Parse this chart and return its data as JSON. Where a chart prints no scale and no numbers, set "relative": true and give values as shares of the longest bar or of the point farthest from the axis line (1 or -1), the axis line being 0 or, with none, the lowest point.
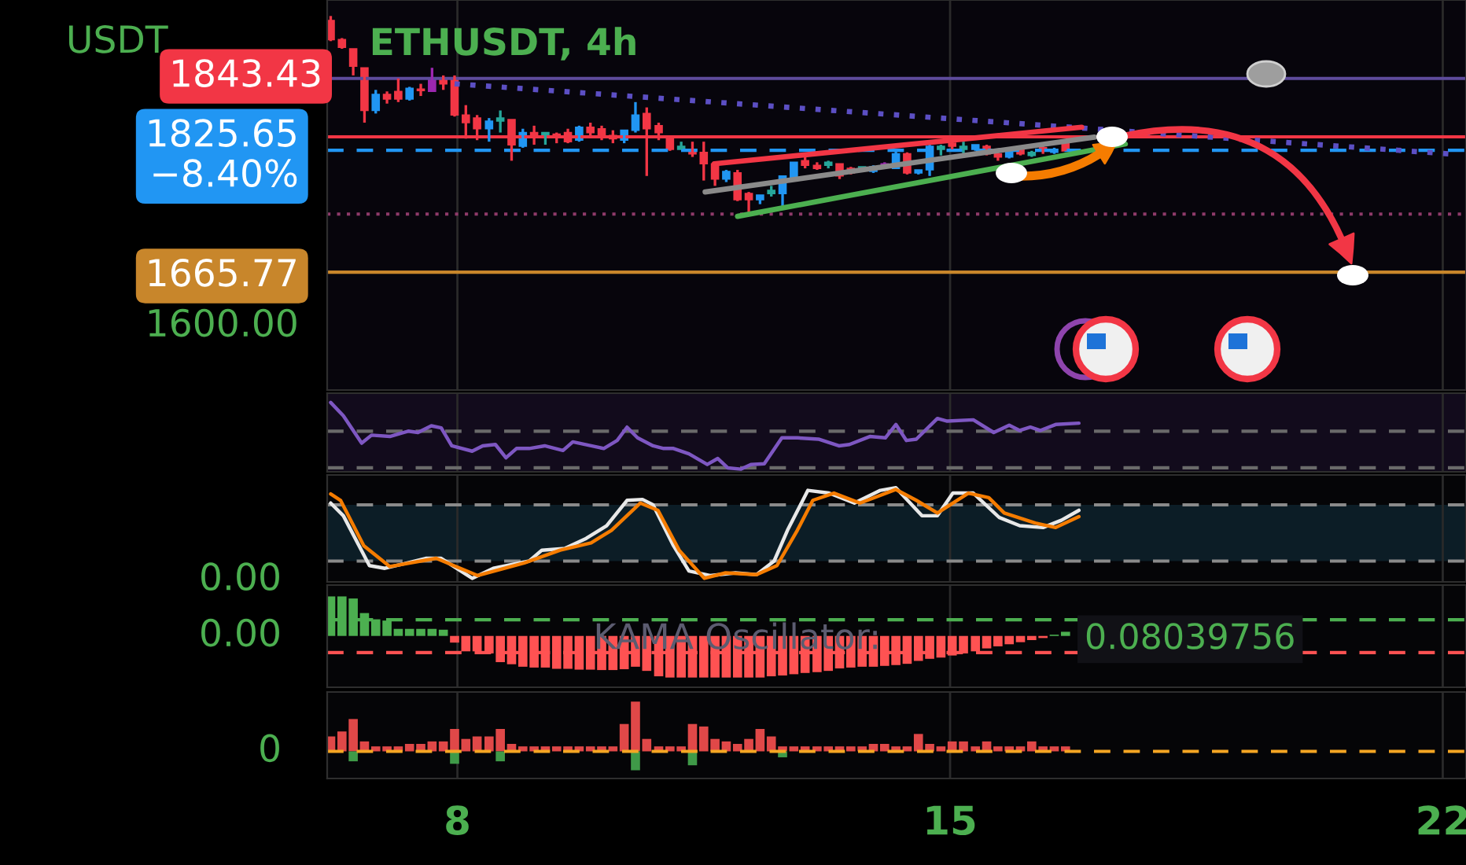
{
  "chart_data": [
    {
      "type": "candlestick",
      "title": "ETHUSDT, 4h",
      "ylabel": "USDT",
      "x": [
        6.2,
        6.36,
        6.52,
        6.68,
        6.84,
        7.0,
        7.16,
        7.32,
        7.48,
        7.64,
        7.8,
        7.96,
        8.12,
        8.28,
        8.45,
        8.61,
        8.77,
        8.93,
        9.09,
        9.25,
        9.41,
        9.57,
        9.73,
        9.89,
        10.05,
        10.21,
        10.37,
        10.53,
        10.69,
        10.86,
        11.02,
        11.18,
        11.34,
        11.5,
        11.66,
        11.82,
        11.98,
        12.14,
        12.3,
        12.46,
        12.62,
        12.78,
        12.94,
        13.11,
        13.27,
        13.43,
        13.59,
        13.75,
        13.91,
        14.07,
        14.23,
        14.39,
        14.55,
        14.71,
        14.87,
        15.03,
        15.19,
        15.36,
        15.52,
        15.68,
        15.84,
        16.0,
        16.16,
        16.32,
        16.48,
        16.64
      ],
      "ohlc": [
        [
          1996,
          2002,
          1969,
          1971
        ],
        [
          1971,
          1973,
          1959,
          1961
        ],
        [
          1959,
          1959,
          1924,
          1936
        ],
        [
          1934,
          1934,
          1862,
          1878
        ],
        [
          1878,
          1905,
          1874,
          1899
        ],
        [
          1899,
          1903,
          1887,
          1893
        ],
        [
          1903,
          1920,
          1889,
          1893
        ],
        [
          1893,
          1909,
          1891,
          1907
        ],
        [
          1906,
          1913,
          1897,
          1904
        ],
        [
          1903,
          1934,
          1903,
          1918
        ],
        [
          1920,
          1924,
          1905,
          1913
        ],
        [
          1918,
          1924,
          1870,
          1872
        ],
        [
          1872,
          1885,
          1841,
          1862
        ],
        [
          1868,
          1872,
          1839,
          1854
        ],
        [
          1854,
          1868,
          1837,
          1864
        ],
        [
          1864,
          1878,
          1849,
          1868
        ],
        [
          1866,
          1866,
          1812,
          1833
        ],
        [
          1831,
          1854,
          1829,
          1849
        ],
        [
          1849,
          1858,
          1833,
          1843
        ],
        [
          1845,
          1849,
          1833,
          1849
        ],
        [
          1847,
          1849,
          1835,
          1843
        ],
        [
          1849,
          1854,
          1835,
          1837
        ],
        [
          1839,
          1858,
          1837,
          1856
        ],
        [
          1856,
          1862,
          1845,
          1849
        ],
        [
          1854,
          1858,
          1839,
          1845
        ],
        [
          1845,
          1852,
          1835,
          1841
        ],
        [
          1839,
          1852,
          1835,
          1852
        ],
        [
          1852,
          1889,
          1849,
          1872
        ],
        [
          1874,
          1882,
          1792,
          1854
        ],
        [
          1858,
          1862,
          1839,
          1849
        ],
        [
          1841,
          1845,
          1825,
          1827
        ],
        [
          1827,
          1837,
          1827,
          1831
        ],
        [
          1827,
          1837,
          1817,
          1821
        ],
        [
          1823,
          1837,
          1786,
          1808
        ],
        [
          1808,
          1810,
          1779,
          1788
        ],
        [
          1788,
          1800,
          1784,
          1798
        ],
        [
          1796,
          1800,
          1759,
          1761
        ],
        [
          1769,
          1771,
          1740,
          1761
        ],
        [
          1761,
          1767,
          1755,
          1767
        ],
        [
          1769,
          1779,
          1765,
          1773
        ],
        [
          1769,
          1792,
          1748,
          1792
        ],
        [
          1790,
          1810,
          1786,
          1810
        ],
        [
          1812,
          1817,
          1802,
          1806
        ],
        [
          1806,
          1810,
          1800,
          1802
        ],
        [
          1806,
          1812,
          1802,
          1810
        ],
        [
          1808,
          1808,
          1788,
          1792
        ],
        [
          1802,
          1804,
          1794,
          1796
        ],
        [
          1800,
          1804,
          1798,
          1804
        ],
        [
          1798,
          1806,
          1796,
          1804
        ],
        [
          1806,
          1810,
          1806,
          1808
        ],
        [
          1802,
          1825,
          1802,
          1821
        ],
        [
          1821,
          1823,
          1794,
          1796
        ],
        [
          1796,
          1800,
          1794,
          1800
        ],
        [
          1800,
          1833,
          1792,
          1831
        ],
        [
          1827,
          1833,
          1819,
          1831
        ],
        [
          1835,
          1839,
          1827,
          1831
        ],
        [
          1827,
          1837,
          1817,
          1831
        ],
        [
          1827,
          1833,
          1825,
          1833
        ],
        [
          1831,
          1833,
          1819,
          1821
        ],
        [
          1821,
          1827,
          1812,
          1817
        ],
        [
          1817,
          1825,
          1815,
          1825
        ],
        [
          1827,
          1829,
          1819,
          1821
        ],
        [
          1819,
          1825,
          1817,
          1823
        ],
        [
          1829,
          1831,
          1821,
          1825
        ],
        [
          1823,
          1829,
          1821,
          1827
        ],
        [
          1835,
          1837,
          1825,
          1825
        ]
      ],
      "colors": [
        "#f23645",
        "#f23645",
        "#f23645",
        "#f23645",
        "#2196f3",
        "#f23645",
        "#f23645",
        "#2196f3",
        "#f23645",
        "#9c27b0",
        "#f23645",
        "#f23645",
        "#f23645",
        "#f23645",
        "#2196f3",
        "#26a69a",
        "#f23645",
        "#2196f3",
        "#f23645",
        "#26a69a",
        "#f23645",
        "#f23645",
        "#2196f3",
        "#f23645",
        "#f23645",
        "#f23645",
        "#2196f3",
        "#2196f3",
        "#f23645",
        "#f23645",
        "#f23645",
        "#26a69a",
        "#f23645",
        "#f23645",
        "#f23645",
        "#2196f3",
        "#f23645",
        "#f23645",
        "#2196f3",
        "#26a69a",
        "#2196f3",
        "#2196f3",
        "#f23645",
        "#f23645",
        "#26a69a",
        "#f23645",
        "#f23645",
        "#26a69a",
        "#2196f3",
        "#9c27b0",
        "#2196f3",
        "#f23645",
        "#2196f3",
        "#2196f3",
        "#26a69a",
        "#f23645",
        "#26a69a",
        "#2196f3",
        "#f23645",
        "#f23645",
        "#2196f3",
        "#f23645",
        "#26a69a",
        "#f23645",
        "#2196f3",
        "#f23645"
      ],
      "series": [
        {
          "type": "line",
          "color": "#5c4fc4",
          "line_style": "dotted",
          "x": [
            7.96,
            22.09
          ],
          "values": [
            1913,
            1821
          ]
        },
        {
          "type": "line",
          "color": "#f23645",
          "line_style": "solid",
          "x": [
            11.65,
            16.87
          ],
          "values": [
            1808,
            1856
          ]
        },
        {
          "type": "line",
          "color": "#8a8a8a",
          "line_style": "solid",
          "x": [
            11.52,
            17.05
          ],
          "values": [
            1771,
            1843
          ]
        },
        {
          "type": "line",
          "color": "#4caf50",
          "line_style": "solid",
          "x": [
            11.98,
            17.49
          ],
          "values": [
            1739,
            1834
          ]
        }
      ],
      "xlim": [
        6.15,
        22.33
      ],
      "ylim": [
        1511,
        2023
      ],
      "xticks": [
        8,
        15,
        22
      ],
      "yticks": [
        {
          "value": 1600,
          "label": "1600.00"
        },
        {
          "value": 1665.77,
          "label": "1665.77"
        },
        {
          "value": 1825.65,
          "label": "1825.65\n−8.40%"
        }
      ],
      "ref_lines": [
        {
          "axis": "y",
          "value": 1920,
          "color": "#5e4b9c",
          "line_style": "solid"
        },
        {
          "axis": "y",
          "value": 1843.43,
          "label": "1843.43",
          "color": "#f23645",
          "line_style": "solid"
        },
        {
          "axis": "y",
          "value": 1825.65,
          "color": "#2196f3",
          "line_style": "dashed"
        },
        {
          "axis": "y",
          "value": 1742,
          "color": "#8e3a6a",
          "line_style": "dotted"
        },
        {
          "axis": "y",
          "value": 1665.77,
          "color": "#c8862b",
          "line_style": "solid"
        }
      ],
      "grid": "x",
      "tick_labels": "y"
    },
    {
      "type": "line",
      "relative": true,
      "series": [
        {
          "color": "#7e57c2",
          "x": [
            6.2,
            6.38,
            6.64,
            6.78,
            7.04,
            7.3,
            7.44,
            7.63,
            7.77,
            7.92,
            8.21,
            8.36,
            8.54,
            8.69,
            8.84,
            9.02,
            9.24,
            9.5,
            9.64,
            9.9,
            10.08,
            10.27,
            10.41,
            10.56,
            10.78,
            10.93,
            11.07,
            11.29,
            11.55,
            11.7,
            11.84,
            12.03,
            12.17,
            12.36,
            12.61,
            12.83,
            13.13,
            13.42,
            13.57,
            13.86,
            14.08,
            14.23,
            14.38,
            14.52,
            14.82,
            14.96,
            15.33,
            15.62,
            15.84,
            15.99,
            16.14,
            16.28,
            16.5,
            16.83
          ],
          "values": [
            1.0,
            0.8,
            0.39,
            0.51,
            0.49,
            0.57,
            0.55,
            0.65,
            0.62,
            0.35,
            0.27,
            0.35,
            0.37,
            0.17,
            0.31,
            0.31,
            0.35,
            0.28,
            0.41,
            0.35,
            0.31,
            0.43,
            0.63,
            0.47,
            0.35,
            0.31,
            0.31,
            0.23,
            0.07,
            0.16,
            0.02,
            0,
            0.07,
            0.08,
            0.47,
            0.47,
            0.45,
            0.35,
            0.37,
            0.49,
            0.47,
            0.67,
            0.43,
            0.45,
            0.76,
            0.72,
            0.74,
            0.55,
            0.66,
            0.58,
            0.63,
            0.58,
            0.67,
            0.69
          ]
        }
      ],
      "xlim": [
        6.15,
        22.33
      ],
      "xticks": [
        8,
        15,
        22
      ],
      "grid": "x",
      "tick_labels": false,
      "ref_lines": [
        {
          "axis": "y",
          "value": 0.57,
          "color": "#6a6a6a",
          "line_style": "dashed"
        },
        {
          "axis": "y",
          "value": 0.02,
          "color": "#6a6a6a",
          "line_style": "dashed"
        }
      ]
    },
    {
      "type": "line",
      "relative": true,
      "series": [
        {
          "color": "#e8e8e8",
          "x": [
            6.2,
            6.38,
            6.75,
            6.97,
            7.55,
            7.77,
            8.21,
            8.51,
            9.02,
            9.2,
            9.53,
            9.83,
            10.12,
            10.41,
            10.63,
            10.78,
            11.07,
            11.29,
            11.59,
            11.95,
            12.25,
            12.5,
            12.69,
            12.98,
            13.28,
            13.64,
            14.01,
            14.23,
            14.6,
            14.82,
            15.04,
            15.33,
            15.7,
            15.99,
            16.32,
            16.58,
            16.83
          ],
          "values": [
            0.83,
            0.69,
            0.14,
            0.11,
            0.22,
            0.22,
            0,
            0.11,
            0.19,
            0.31,
            0.33,
            0.44,
            0.58,
            0.86,
            0.87,
            0.81,
            0.36,
            0.08,
            0.03,
            0.06,
            0.04,
            0.19,
            0.53,
            0.97,
            0.94,
            0.83,
            0.97,
            1.0,
            0.69,
            0.69,
            0.94,
            0.94,
            0.67,
            0.58,
            0.56,
            0.64,
            0.75
          ]
        },
        {
          "color": "#f57c00",
          "x": [
            6.2,
            6.34,
            6.67,
            7.04,
            7.7,
            8.29,
            8.95,
            9.46,
            9.9,
            10.19,
            10.6,
            10.85,
            11.15,
            11.51,
            11.81,
            12.25,
            12.54,
            12.83,
            13.05,
            13.35,
            13.72,
            14.23,
            14.52,
            14.82,
            15.26,
            15.55,
            15.77,
            16.21,
            16.5,
            16.83
          ],
          "values": [
            0.93,
            0.86,
            0.36,
            0.13,
            0.22,
            0.03,
            0.17,
            0.31,
            0.39,
            0.53,
            0.83,
            0.75,
            0.31,
            0,
            0.06,
            0.04,
            0.14,
            0.53,
            0.86,
            0.94,
            0.83,
            0.98,
            0.86,
            0.72,
            0.94,
            0.89,
            0.72,
            0.61,
            0.56,
            0.68
          ]
        }
      ],
      "xlim": [
        6.15,
        22.33
      ],
      "xticks": [
        8,
        15,
        22
      ],
      "grid": "x",
      "tick_labels": false,
      "bands": [
        {
          "axis": "y",
          "from": 0.19,
          "to": 0.81,
          "color": "#0c1d26"
        }
      ],
      "ref_lines": [
        {
          "axis": "y",
          "value": 0.81,
          "color": "#8a8a8a",
          "line_style": "dashed"
        },
        {
          "axis": "y",
          "value": 0.19,
          "color": "#8a8a8a",
          "line_style": "dashed"
        }
      ],
      "annotations": [
        "0.00"
      ]
    },
    {
      "type": "bar",
      "relative": true,
      "x": [
        6.2,
        6.36,
        6.52,
        6.68,
        6.84,
        7.0,
        7.16,
        7.32,
        7.48,
        7.64,
        7.8,
        7.96,
        8.12,
        8.28,
        8.45,
        8.61,
        8.77,
        8.93,
        9.09,
        9.25,
        9.41,
        9.57,
        9.73,
        9.89,
        10.05,
        10.21,
        10.37,
        10.53,
        10.69,
        10.86,
        11.02,
        11.18,
        11.34,
        11.5,
        11.66,
        11.82,
        11.98,
        12.14,
        12.3,
        12.46,
        12.62,
        12.78,
        12.94,
        13.11,
        13.27,
        13.43,
        13.59,
        13.75,
        13.91,
        14.07,
        14.23,
        14.39,
        14.55,
        14.71,
        14.87,
        15.03,
        15.19,
        15.36,
        15.52,
        15.68,
        15.84,
        16.0,
        16.16,
        16.32,
        16.48,
        16.64
      ],
      "values": [
        0.95,
        0.95,
        0.9,
        0.55,
        0.4,
        0.37,
        0.17,
        0.17,
        0.17,
        0.17,
        0.15,
        -0.16,
        -0.37,
        -0.37,
        -0.42,
        -0.63,
        -0.68,
        -0.74,
        -0.76,
        -0.76,
        -0.79,
        -0.79,
        -0.81,
        -0.81,
        -0.82,
        -0.82,
        -0.8,
        -0.74,
        -0.84,
        -0.97,
        -1,
        -1,
        -1,
        -1,
        -1,
        -1,
        -1,
        -1,
        -1,
        -0.97,
        -0.95,
        -0.92,
        -0.89,
        -0.87,
        -0.84,
        -0.78,
        -0.76,
        -0.74,
        -0.74,
        -0.72,
        -0.7,
        -0.67,
        -0.6,
        -0.55,
        -0.52,
        -0.47,
        -0.42,
        -0.37,
        -0.3,
        -0.25,
        -0.2,
        -0.15,
        -0.1,
        -0.05,
        0.03,
        0.1
      ],
      "colors": [
        "#4caf50",
        "#4caf50",
        "#4caf50",
        "#4caf50",
        "#4caf50",
        "#4caf50",
        "#4caf50",
        "#4caf50",
        "#4caf50",
        "#4caf50",
        "#4caf50",
        "#ff5252",
        "#ff5252",
        "#ff5252",
        "#ff5252",
        "#ff5252",
        "#ff5252",
        "#ff5252",
        "#ff5252",
        "#ff5252",
        "#ff5252",
        "#ff5252",
        "#ff5252",
        "#ff5252",
        "#ff5252",
        "#ff5252",
        "#ff5252",
        "#ff5252",
        "#ff5252",
        "#ff5252",
        "#ff5252",
        "#ff5252",
        "#ff5252",
        "#ff5252",
        "#ff5252",
        "#ff5252",
        "#ff5252",
        "#ff5252",
        "#ff5252",
        "#ff5252",
        "#ff5252",
        "#ff5252",
        "#ff5252",
        "#ff5252",
        "#ff5252",
        "#ff5252",
        "#ff5252",
        "#ff5252",
        "#ff5252",
        "#ff5252",
        "#ff5252",
        "#ff5252",
        "#ff5252",
        "#ff5252",
        "#ff5252",
        "#ff5252",
        "#ff5252",
        "#ff5252",
        "#ff5252",
        "#ff5252",
        "#ff5252",
        "#ff5252",
        "#ff5252",
        "#ff5252",
        "#4caf50",
        "#4caf50"
      ],
      "xlim": [
        6.15,
        22.33
      ],
      "xticks": [
        8,
        15,
        22
      ],
      "grid": "x",
      "tick_labels": false,
      "ref_lines": [
        {
          "axis": "y",
          "value": 0.39,
          "color": "#4caf50",
          "line_style": "dashed"
        },
        {
          "axis": "y",
          "value": -0.4,
          "color": "#ff5252",
          "line_style": "dashed"
        }
      ],
      "annotations": [
        "0.00",
        "KAMA Oscillator:",
        "0.08039756"
      ]
    },
    {
      "type": "bar",
      "relative": true,
      "x": [
        6.2,
        6.36,
        6.52,
        6.68,
        6.84,
        7.0,
        7.16,
        7.32,
        7.48,
        7.64,
        7.8,
        7.96,
        8.12,
        8.28,
        8.45,
        8.61,
        8.77,
        8.93,
        9.09,
        9.25,
        9.41,
        9.57,
        9.73,
        9.89,
        10.05,
        10.21,
        10.37,
        10.53,
        10.69,
        10.86,
        11.02,
        11.18,
        11.34,
        11.5,
        11.66,
        11.82,
        11.98,
        12.14,
        12.3,
        12.46,
        12.62,
        12.78,
        12.94,
        13.11,
        13.27,
        13.43,
        13.59,
        13.75,
        13.91,
        14.07,
        14.23,
        14.39,
        14.55,
        14.71,
        14.87,
        15.03,
        15.19,
        15.36,
        15.52,
        15.68,
        15.84,
        16.0,
        16.16,
        16.32,
        16.48,
        16.64
      ],
      "series": [
        {
          "color": "#e04848",
          "values": [
            0.3,
            0.4,
            0.65,
            0.2,
            0.1,
            0.1,
            0.1,
            0.15,
            0.15,
            0.2,
            0.2,
            0.45,
            0.25,
            0.3,
            0.3,
            0.45,
            0.15,
            0.1,
            0.1,
            0.1,
            0.1,
            0.1,
            0.1,
            0.1,
            0.1,
            0.1,
            0.55,
            1.0,
            0.25,
            0.1,
            0.1,
            0.1,
            0.55,
            0.5,
            0.25,
            0.2,
            0.15,
            0.25,
            0.45,
            0.3,
            0.1,
            0.1,
            0.1,
            0.1,
            0.1,
            0.1,
            0.1,
            0.1,
            0.15,
            0.15,
            0.1,
            0.1,
            0.35,
            0.15,
            0.1,
            0.2,
            0.2,
            0.1,
            0.2,
            0.1,
            0.1,
            0.1,
            0.2,
            0.1,
            0.1,
            0.1
          ]
        },
        {
          "color": "#3f9a48",
          "values": [
            null,
            null,
            -0.2,
            null,
            null,
            null,
            null,
            null,
            null,
            null,
            null,
            -0.25,
            null,
            null,
            null,
            -0.2,
            null,
            null,
            null,
            null,
            null,
            null,
            null,
            null,
            null,
            null,
            null,
            -0.38,
            null,
            null,
            null,
            null,
            -0.28,
            null,
            null,
            null,
            null,
            null,
            null,
            null,
            -0.12,
            null,
            null,
            null,
            null,
            null,
            null,
            null,
            null,
            null,
            null,
            null,
            null,
            null,
            null,
            null,
            null,
            null,
            null,
            null,
            null,
            null,
            null,
            null,
            null,
            null
          ]
        }
      ],
      "xlim": [
        6.15,
        22.33
      ],
      "xticks": [
        8,
        15,
        22
      ],
      "grid": "x",
      "tick_labels": "x",
      "ref_lines": [
        {
          "axis": "y",
          "value": 0,
          "color": "#f5a623",
          "line_style": "dashed"
        }
      ],
      "annotations": [
        "0"
      ]
    }
  ]
}
